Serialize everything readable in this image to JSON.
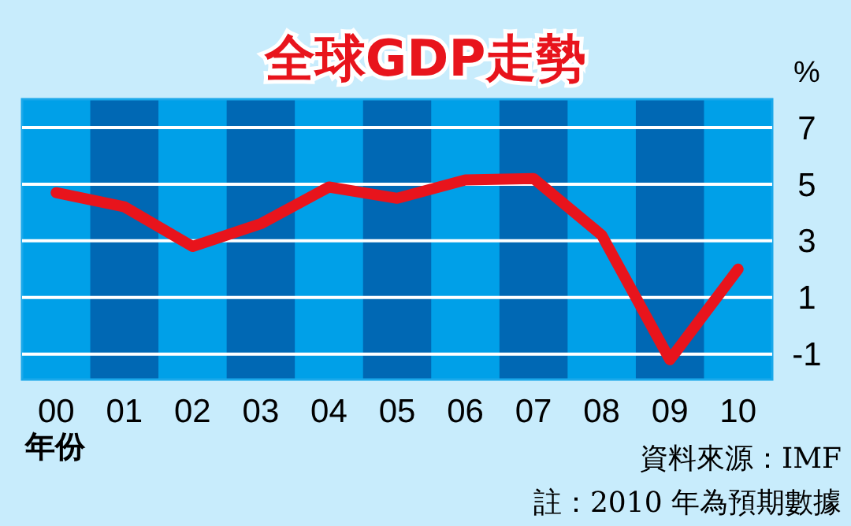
{
  "chart_data": {
    "type": "line",
    "title": "全球GDP走勢",
    "ylabel": "%",
    "xlabel": "年份",
    "categories": [
      "00",
      "01",
      "02",
      "03",
      "04",
      "05",
      "06",
      "07",
      "08",
      "09",
      "10"
    ],
    "series": [
      {
        "color": "#e8141c",
        "values": [
          4.7,
          4.2,
          2.8,
          3.6,
          4.9,
          4.5,
          5.15,
          5.2,
          3.2,
          -1.2,
          2.0
        ]
      }
    ],
    "ylim": [
      -1.9,
      8
    ],
    "yticks": [
      -1,
      1,
      3,
      5,
      7
    ],
    "grid": "y",
    "marker": "none",
    "line_style": "solid",
    "annotations": [
      "資料來源：IMF",
      "註：2010 年為預期數據"
    ]
  }
}
